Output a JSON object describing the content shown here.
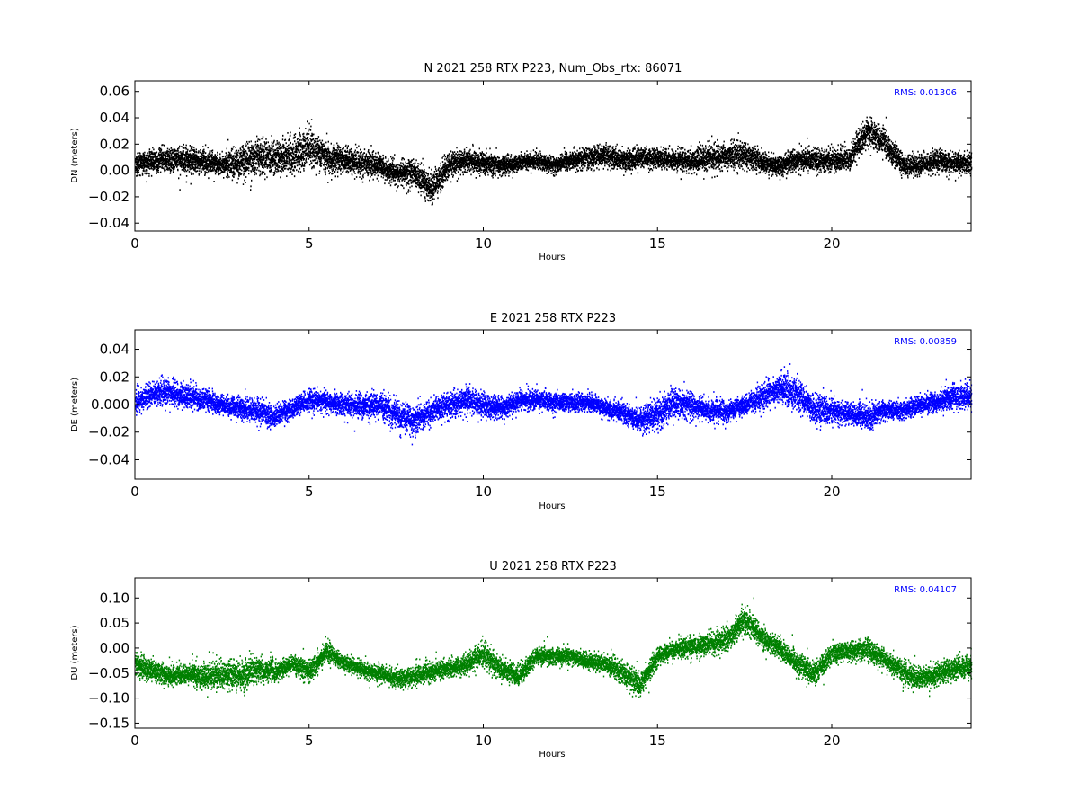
{
  "chart_data": [
    {
      "type": "scatter",
      "title": "N 2021 258 RTX  P223, Num_Obs_rtx: 86071",
      "xlabel": "Hours",
      "ylabel": "DN (meters)",
      "xlim": [
        0,
        24
      ],
      "ylim": [
        -0.046,
        0.068
      ],
      "xticks": [
        0,
        5,
        10,
        15,
        20
      ],
      "yticks": [
        -0.04,
        -0.02,
        0.0,
        0.02,
        0.04,
        0.06
      ],
      "ytick_labels": [
        "−0.04",
        "−0.02",
        "0.00",
        "0.02",
        "0.04",
        "0.06"
      ],
      "annotation": "RMS:  0.01306",
      "annotation_color": "#0000ff",
      "color": "#000000",
      "grid": false,
      "num_obs": 86071,
      "series": [
        {
          "x": [
            0,
            0.5,
            1,
            1.5,
            2,
            2.5,
            3,
            3.5,
            4,
            4.5,
            5,
            5.5,
            6,
            6.5,
            7,
            7.5,
            8,
            8.5,
            9,
            9.5,
            10,
            10.5,
            11,
            11.5,
            12,
            12.5,
            13,
            13.5,
            14,
            14.5,
            15,
            15.5,
            16,
            16.5,
            17,
            17.5,
            18,
            18.5,
            19,
            19.5,
            20,
            20.5,
            21,
            21.5,
            22,
            22.5,
            23,
            23.5,
            24
          ],
          "values": [
            0.005,
            0.008,
            0.009,
            0.008,
            0.007,
            0.005,
            0.006,
            0.012,
            0.01,
            0.012,
            0.018,
            0.01,
            0.008,
            0.006,
            0.004,
            -0.002,
            0.0,
            -0.015,
            0.005,
            0.008,
            0.006,
            0.004,
            0.006,
            0.008,
            0.004,
            0.008,
            0.01,
            0.012,
            0.008,
            0.01,
            0.01,
            0.008,
            0.008,
            0.01,
            0.012,
            0.012,
            0.006,
            0.004,
            0.008,
            0.008,
            0.008,
            0.01,
            0.03,
            0.022,
            0.005,
            0.004,
            0.008,
            0.006,
            0.006
          ],
          "spread": [
            0.01,
            0.01,
            0.011,
            0.011,
            0.01,
            0.008,
            0.015,
            0.016,
            0.013,
            0.015,
            0.016,
            0.013,
            0.011,
            0.011,
            0.01,
            0.01,
            0.012,
            0.013,
            0.011,
            0.01,
            0.01,
            0.008,
            0.007,
            0.007,
            0.007,
            0.008,
            0.009,
            0.009,
            0.008,
            0.008,
            0.009,
            0.008,
            0.01,
            0.011,
            0.011,
            0.011,
            0.009,
            0.008,
            0.009,
            0.009,
            0.01,
            0.011,
            0.012,
            0.011,
            0.009,
            0.008,
            0.009,
            0.009,
            0.009
          ]
        }
      ]
    },
    {
      "type": "scatter",
      "title": "E 2021 258 RTX  P223",
      "xlabel": "Hours",
      "ylabel": "DE (meters)",
      "xlim": [
        0,
        24
      ],
      "ylim": [
        -0.054,
        0.054
      ],
      "xticks": [
        0,
        5,
        10,
        15,
        20
      ],
      "yticks": [
        -0.04,
        -0.02,
        0.0,
        0.02,
        0.04
      ],
      "ytick_labels": [
        "−0.04",
        "−0.02",
        "0.000",
        "0.02",
        "0.04"
      ],
      "annotation": "RMS:  0.00859",
      "annotation_color": "#0000ff",
      "color": "#0000ff",
      "grid": false,
      "series": [
        {
          "x": [
            0,
            0.5,
            1,
            1.5,
            2,
            2.5,
            3,
            3.5,
            4,
            4.5,
            5,
            5.5,
            6,
            6.5,
            7,
            7.5,
            8,
            8.5,
            9,
            9.5,
            10,
            10.5,
            11,
            11.5,
            12,
            12.5,
            13,
            13.5,
            14,
            14.5,
            15,
            15.5,
            16,
            16.5,
            17,
            17.5,
            18,
            18.5,
            19,
            19.5,
            20,
            20.5,
            21,
            21.5,
            22,
            22.5,
            23,
            23.5,
            24
          ],
          "values": [
            0.002,
            0.008,
            0.01,
            0.006,
            0.004,
            0.0,
            -0.002,
            -0.004,
            -0.008,
            -0.002,
            0.004,
            0.002,
            0.0,
            0.0,
            0.0,
            -0.006,
            -0.012,
            -0.004,
            0.0,
            0.004,
            0.0,
            -0.002,
            0.004,
            0.004,
            0.002,
            0.002,
            0.002,
            -0.002,
            -0.006,
            -0.01,
            -0.006,
            0.002,
            0.0,
            -0.004,
            -0.004,
            0.0,
            0.006,
            0.012,
            0.008,
            -0.004,
            -0.004,
            -0.006,
            -0.008,
            -0.004,
            -0.004,
            0.0,
            0.002,
            0.006,
            0.006
          ],
          "spread": [
            0.008,
            0.01,
            0.011,
            0.01,
            0.009,
            0.007,
            0.009,
            0.012,
            0.009,
            0.008,
            0.008,
            0.008,
            0.009,
            0.01,
            0.01,
            0.011,
            0.012,
            0.01,
            0.01,
            0.01,
            0.01,
            0.009,
            0.008,
            0.008,
            0.007,
            0.007,
            0.007,
            0.007,
            0.008,
            0.011,
            0.013,
            0.012,
            0.01,
            0.009,
            0.008,
            0.008,
            0.01,
            0.013,
            0.013,
            0.011,
            0.01,
            0.009,
            0.011,
            0.008,
            0.007,
            0.007,
            0.008,
            0.01,
            0.01
          ]
        }
      ]
    },
    {
      "type": "scatter",
      "title": "U 2021 258 RTX  P223",
      "xlabel": "Hours",
      "ylabel": "DU (meters)",
      "xlim": [
        0,
        24
      ],
      "ylim": [
        -0.16,
        0.14
      ],
      "xticks": [
        0,
        5,
        10,
        15,
        20
      ],
      "yticks": [
        -0.15,
        -0.1,
        -0.05,
        0.0,
        0.05,
        0.1
      ],
      "ytick_labels": [
        "−0.15",
        "−0.10",
        "−0.05",
        "0.00",
        "0.05",
        "0.10"
      ],
      "annotation": "RMS:  0.04107",
      "annotation_color": "#0000ff",
      "color": "#008000",
      "grid": false,
      "series": [
        {
          "x": [
            0,
            0.5,
            1,
            1.5,
            2,
            2.5,
            3,
            3.5,
            4,
            4.5,
            5,
            5.5,
            6,
            6.5,
            7,
            7.5,
            8,
            8.5,
            9,
            9.5,
            10,
            10.5,
            11,
            11.5,
            12,
            12.5,
            13,
            13.5,
            14,
            14.5,
            15,
            15.5,
            16,
            16.5,
            17,
            17.5,
            18,
            18.5,
            19,
            19.5,
            20,
            20.5,
            21,
            21.5,
            22,
            22.5,
            23,
            23.5,
            24
          ],
          "values": [
            -0.03,
            -0.045,
            -0.055,
            -0.05,
            -0.055,
            -0.05,
            -0.055,
            -0.04,
            -0.045,
            -0.03,
            -0.045,
            -0.005,
            -0.03,
            -0.04,
            -0.05,
            -0.06,
            -0.055,
            -0.045,
            -0.04,
            -0.03,
            -0.01,
            -0.04,
            -0.055,
            -0.015,
            -0.015,
            -0.015,
            -0.025,
            -0.03,
            -0.05,
            -0.07,
            -0.015,
            0.0,
            0.005,
            0.01,
            0.02,
            0.06,
            0.02,
            0.0,
            -0.03,
            -0.05,
            -0.01,
            -0.005,
            0.0,
            -0.02,
            -0.045,
            -0.06,
            -0.05,
            -0.04,
            -0.035
          ],
          "spread": [
            0.028,
            0.025,
            0.022,
            0.02,
            0.03,
            0.03,
            0.035,
            0.028,
            0.025,
            0.022,
            0.025,
            0.022,
            0.02,
            0.018,
            0.018,
            0.02,
            0.022,
            0.022,
            0.02,
            0.022,
            0.028,
            0.025,
            0.025,
            0.02,
            0.018,
            0.018,
            0.018,
            0.02,
            0.025,
            0.025,
            0.02,
            0.02,
            0.022,
            0.025,
            0.025,
            0.03,
            0.025,
            0.022,
            0.025,
            0.025,
            0.022,
            0.022,
            0.025,
            0.022,
            0.025,
            0.025,
            0.025,
            0.025,
            0.025
          ]
        }
      ]
    }
  ]
}
